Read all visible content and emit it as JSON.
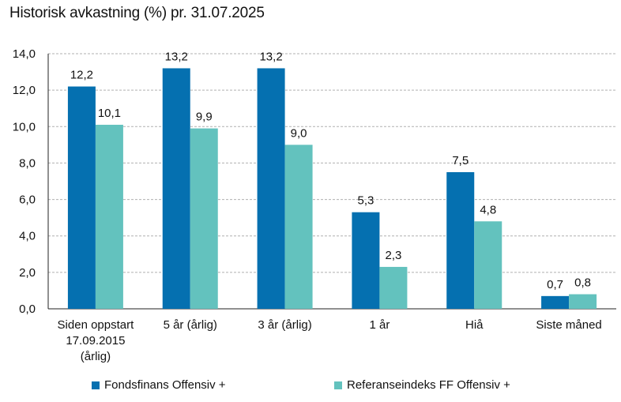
{
  "chart_data": {
    "type": "bar",
    "title": "Historisk avkastning (%) pr. 31.07.2025",
    "categories": [
      [
        "Siden oppstart",
        "17.09.2015",
        "(årlig)"
      ],
      [
        "5 år (årlig)"
      ],
      [
        "3 år (årlig)"
      ],
      [
        "1 år"
      ],
      [
        "Hiå"
      ],
      [
        "Siste måned"
      ]
    ],
    "series": [
      {
        "name": "Fondsfinans Offensiv +",
        "color": "#0570b0",
        "values": [
          12.2,
          13.2,
          13.2,
          5.3,
          7.5,
          0.7
        ],
        "labels": [
          "12,2",
          "13,2",
          "13,2",
          "5,3",
          "7,5",
          "0,7"
        ]
      },
      {
        "name": "Referanseindeks FF Offensiv +",
        "color": "#63c2be",
        "values": [
          10.1,
          9.9,
          9.0,
          2.3,
          4.8,
          0.8
        ],
        "labels": [
          "10,1",
          "9,9",
          "9,0",
          "2,3",
          "4,8",
          "0,8"
        ]
      }
    ],
    "ylim": [
      0,
      14
    ],
    "yticks": [
      0,
      2,
      4,
      6,
      8,
      10,
      12,
      14
    ],
    "ytick_labels": [
      "0,0",
      "2,0",
      "4,0",
      "6,0",
      "8,0",
      "10,0",
      "12,0",
      "14,0"
    ],
    "grid": true,
    "legend_position": "bottom"
  }
}
